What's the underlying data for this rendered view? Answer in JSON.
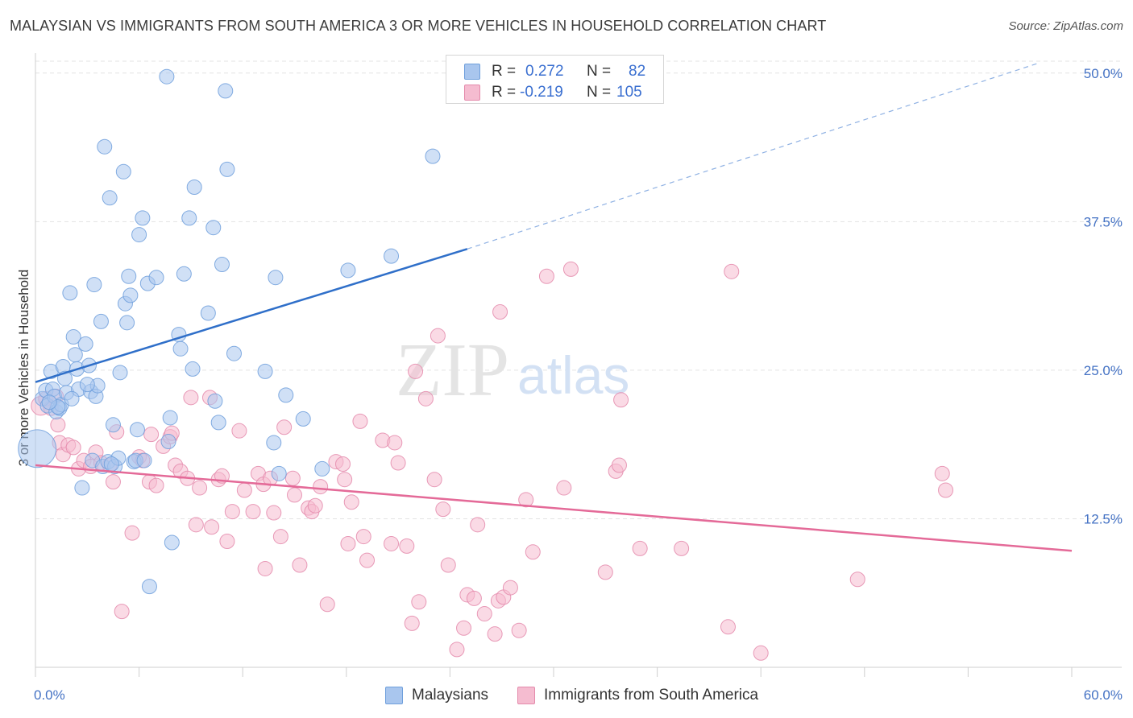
{
  "title": "MALAYSIAN VS IMMIGRANTS FROM SOUTH AMERICA 3 OR MORE VEHICLES IN HOUSEHOLD CORRELATION CHART",
  "source": "Source: ZipAtlas.com",
  "watermark": {
    "zip": "ZIP",
    "atlas": "atlas"
  },
  "legend_top": {
    "rows": [
      {
        "r_label": "R =",
        "r_value": "0.272",
        "n_label": "N =",
        "n_value": "82"
      },
      {
        "r_label": "R =",
        "r_value": "-0.219",
        "n_label": "N =",
        "n_value": "105"
      }
    ]
  },
  "legend_bottom": {
    "items": [
      {
        "label": "Malaysians"
      },
      {
        "label": "Immigrants from South America"
      }
    ]
  },
  "colors": {
    "blue_fill": "#a9c6ee",
    "blue_stroke": "#6f9fdc",
    "blue_line": "#2f6fc9",
    "pink_fill": "#f5bcd0",
    "pink_stroke": "#e48aab",
    "pink_line": "#e46a98",
    "axis_text": "#4472c4",
    "grid": "#e3e3e3"
  },
  "chart_data": {
    "type": "scatter",
    "title": "MALAYSIAN VS IMMIGRANTS FROM SOUTH AMERICA 3 OR MORE VEHICLES IN HOUSEHOLD CORRELATION CHART",
    "xlabel": "",
    "ylabel": "3 or more Vehicles in Household",
    "xlim": [
      0,
      60
    ],
    "ylim": [
      0,
      51
    ],
    "x_ticks": [
      "0.0%",
      "60.0%"
    ],
    "y_ticks": [
      {
        "value": 12.5,
        "label": "12.5%"
      },
      {
        "value": 25.0,
        "label": "25.0%"
      },
      {
        "value": 37.5,
        "label": "37.5%"
      },
      {
        "value": 50.0,
        "label": "50.0%"
      }
    ],
    "grid": true,
    "legend_position": "top-center",
    "series": [
      {
        "name": "Malaysians",
        "r": 0.272,
        "n": 82,
        "trend": {
          "x0": 0.0,
          "y0": 24.0,
          "x1": 25.0,
          "y1": 35.2,
          "dashed_to_x": 58.0,
          "dashed_to_y": 50.8
        },
        "points": [
          [
            0.1,
            18.4,
            2.6
          ],
          [
            0.4,
            22.6,
            1.0
          ],
          [
            0.6,
            23.3,
            1.0
          ],
          [
            0.7,
            22.0,
            1.0
          ],
          [
            0.9,
            24.9,
            1.0
          ],
          [
            1.0,
            23.4,
            1.0
          ],
          [
            1.1,
            22.8,
            1.0
          ],
          [
            1.2,
            21.5,
            1.0
          ],
          [
            1.4,
            21.8,
            1.0
          ],
          [
            1.5,
            22.1,
            1.0
          ],
          [
            1.6,
            25.3,
            1.0
          ],
          [
            1.7,
            24.3,
            1.0
          ],
          [
            1.8,
            23.1,
            1.0
          ],
          [
            2.0,
            31.5,
            1.0
          ],
          [
            2.2,
            27.8,
            1.0
          ],
          [
            2.3,
            26.3,
            1.0
          ],
          [
            2.4,
            25.1,
            1.0
          ],
          [
            2.5,
            23.4,
            1.0
          ],
          [
            2.7,
            15.1,
            1.0
          ],
          [
            2.9,
            27.2,
            1.0
          ],
          [
            3.1,
            25.4,
            1.0
          ],
          [
            3.2,
            23.2,
            1.0
          ],
          [
            3.3,
            17.4,
            1.0
          ],
          [
            3.4,
            32.2,
            1.0
          ],
          [
            3.5,
            22.8,
            1.0
          ],
          [
            3.6,
            23.7,
            1.0
          ],
          [
            3.8,
            29.1,
            1.0
          ],
          [
            3.9,
            16.9,
            1.0
          ],
          [
            4.0,
            43.8,
            1.0
          ],
          [
            4.2,
            17.3,
            1.0
          ],
          [
            4.3,
            39.5,
            1.0
          ],
          [
            4.5,
            20.4,
            1.0
          ],
          [
            4.6,
            16.9,
            1.0
          ],
          [
            4.8,
            17.6,
            1.0
          ],
          [
            4.9,
            24.8,
            1.0
          ],
          [
            5.1,
            41.7,
            1.0
          ],
          [
            5.2,
            30.6,
            1.0
          ],
          [
            5.3,
            29.0,
            1.0
          ],
          [
            5.4,
            32.9,
            1.0
          ],
          [
            5.5,
            31.3,
            1.0
          ],
          [
            5.7,
            17.3,
            1.0
          ],
          [
            5.8,
            17.4,
            1.0
          ],
          [
            5.9,
            20.0,
            1.0
          ],
          [
            6.0,
            36.4,
            1.0
          ],
          [
            6.2,
            37.8,
            1.0
          ],
          [
            6.3,
            17.4,
            1.0
          ],
          [
            6.5,
            32.3,
            1.0
          ],
          [
            6.6,
            6.8,
            1.0
          ],
          [
            7.0,
            32.8,
            1.0
          ],
          [
            7.6,
            49.7,
            1.0
          ],
          [
            7.7,
            19.0,
            1.0
          ],
          [
            7.8,
            21.0,
            1.0
          ],
          [
            7.9,
            10.5,
            1.0
          ],
          [
            8.3,
            28.0,
            1.0
          ],
          [
            8.4,
            26.8,
            1.0
          ],
          [
            8.6,
            33.1,
            1.0
          ],
          [
            8.9,
            37.8,
            1.0
          ],
          [
            9.1,
            25.1,
            1.0
          ],
          [
            9.2,
            40.4,
            1.0
          ],
          [
            10.0,
            29.8,
            1.0
          ],
          [
            10.3,
            37.0,
            1.0
          ],
          [
            10.4,
            22.4,
            1.0
          ],
          [
            10.6,
            20.6,
            1.0
          ],
          [
            10.8,
            33.9,
            1.0
          ],
          [
            11.0,
            48.5,
            1.0
          ],
          [
            11.1,
            41.9,
            1.0
          ],
          [
            11.5,
            26.4,
            1.0
          ],
          [
            13.3,
            24.9,
            1.0
          ],
          [
            13.8,
            18.9,
            1.0
          ],
          [
            13.9,
            32.8,
            1.0
          ],
          [
            14.1,
            16.3,
            1.0
          ],
          [
            14.5,
            22.9,
            1.0
          ],
          [
            15.5,
            20.9,
            1.0
          ],
          [
            16.6,
            16.7,
            1.0
          ],
          [
            18.1,
            33.4,
            1.0
          ],
          [
            20.6,
            34.6,
            1.0
          ],
          [
            23.0,
            43.0,
            1.0
          ],
          [
            3.0,
            23.8,
            1.0
          ],
          [
            1.3,
            21.9,
            1.0
          ],
          [
            0.8,
            22.3,
            1.0
          ],
          [
            2.1,
            22.6,
            1.0
          ],
          [
            4.4,
            17.1,
            1.0
          ]
        ]
      },
      {
        "name": "Immigrants from South America",
        "r": -0.219,
        "n": 105,
        "trend": {
          "x0": 0.0,
          "y0": 17.0,
          "x1": 60.0,
          "y1": 9.8
        },
        "points": [
          [
            0.3,
            22.0,
            1.3
          ],
          [
            0.6,
            22.6,
            1.0
          ],
          [
            0.9,
            21.8,
            1.0
          ],
          [
            1.2,
            22.8,
            1.0
          ],
          [
            1.3,
            20.4,
            1.0
          ],
          [
            1.4,
            18.9,
            1.0
          ],
          [
            1.6,
            17.9,
            1.0
          ],
          [
            1.9,
            18.7,
            1.0
          ],
          [
            2.2,
            18.5,
            1.0
          ],
          [
            2.5,
            16.7,
            1.0
          ],
          [
            2.8,
            17.4,
            1.0
          ],
          [
            3.2,
            16.9,
            1.0
          ],
          [
            3.5,
            18.1,
            1.0
          ],
          [
            3.8,
            17.2,
            1.0
          ],
          [
            4.3,
            17.0,
            1.0
          ],
          [
            4.5,
            15.6,
            1.0
          ],
          [
            4.7,
            19.8,
            1.0
          ],
          [
            5.0,
            4.7,
            1.0
          ],
          [
            5.6,
            11.3,
            1.0
          ],
          [
            6.0,
            17.7,
            1.0
          ],
          [
            6.2,
            17.4,
            1.0
          ],
          [
            6.6,
            15.6,
            1.0
          ],
          [
            6.7,
            19.6,
            1.0
          ],
          [
            7.0,
            15.3,
            1.0
          ],
          [
            7.4,
            18.6,
            1.0
          ],
          [
            7.8,
            19.4,
            1.0
          ],
          [
            7.9,
            19.7,
            1.0
          ],
          [
            8.1,
            17.0,
            1.0
          ],
          [
            8.4,
            16.5,
            1.0
          ],
          [
            8.8,
            15.9,
            1.0
          ],
          [
            9.0,
            22.7,
            1.0
          ],
          [
            9.3,
            12.0,
            1.0
          ],
          [
            9.5,
            15.1,
            1.0
          ],
          [
            10.1,
            22.7,
            1.0
          ],
          [
            10.2,
            11.8,
            1.0
          ],
          [
            10.6,
            15.8,
            1.0
          ],
          [
            10.8,
            16.1,
            1.0
          ],
          [
            11.1,
            10.6,
            1.0
          ],
          [
            11.4,
            13.1,
            1.0
          ],
          [
            11.8,
            19.9,
            1.0
          ],
          [
            12.1,
            14.9,
            1.0
          ],
          [
            12.6,
            13.1,
            1.0
          ],
          [
            12.9,
            16.3,
            1.0
          ],
          [
            13.2,
            15.4,
            1.0
          ],
          [
            13.3,
            8.3,
            1.0
          ],
          [
            13.6,
            15.9,
            1.0
          ],
          [
            13.8,
            13.0,
            1.0
          ],
          [
            14.2,
            11.0,
            1.0
          ],
          [
            14.4,
            20.2,
            1.0
          ],
          [
            14.9,
            15.9,
            1.0
          ],
          [
            15.0,
            14.5,
            1.0
          ],
          [
            15.3,
            8.6,
            1.0
          ],
          [
            15.8,
            13.4,
            1.0
          ],
          [
            16.0,
            13.1,
            1.0
          ],
          [
            16.2,
            13.6,
            1.0
          ],
          [
            16.5,
            15.2,
            1.0
          ],
          [
            16.9,
            5.3,
            1.0
          ],
          [
            17.4,
            17.3,
            1.0
          ],
          [
            17.8,
            17.1,
            1.0
          ],
          [
            17.9,
            15.8,
            1.0
          ],
          [
            18.1,
            10.4,
            1.0
          ],
          [
            18.3,
            13.9,
            1.0
          ],
          [
            18.8,
            20.7,
            1.0
          ],
          [
            19.0,
            11.0,
            1.0
          ],
          [
            19.2,
            9.0,
            1.0
          ],
          [
            20.1,
            19.1,
            1.0
          ],
          [
            20.6,
            10.4,
            1.0
          ],
          [
            20.8,
            18.9,
            1.0
          ],
          [
            21.0,
            17.2,
            1.0
          ],
          [
            21.5,
            10.2,
            1.0
          ],
          [
            21.8,
            3.7,
            1.0
          ],
          [
            22.0,
            24.9,
            1.0
          ],
          [
            22.2,
            5.5,
            1.0
          ],
          [
            22.6,
            22.6,
            1.0
          ],
          [
            23.1,
            15.8,
            1.0
          ],
          [
            23.3,
            27.9,
            1.0
          ],
          [
            23.6,
            13.3,
            1.0
          ],
          [
            23.9,
            8.6,
            1.0
          ],
          [
            24.4,
            1.5,
            1.0
          ],
          [
            24.8,
            3.3,
            1.0
          ],
          [
            25.0,
            6.1,
            1.0
          ],
          [
            25.4,
            5.8,
            1.0
          ],
          [
            25.6,
            12.0,
            1.0
          ],
          [
            26.0,
            4.5,
            1.0
          ],
          [
            26.6,
            2.8,
            1.0
          ],
          [
            26.8,
            5.6,
            1.0
          ],
          [
            27.1,
            5.9,
            1.0
          ],
          [
            26.9,
            29.9,
            1.0
          ],
          [
            27.5,
            6.7,
            1.0
          ],
          [
            28.0,
            3.1,
            1.0
          ],
          [
            28.4,
            14.1,
            1.0
          ],
          [
            28.8,
            9.7,
            1.0
          ],
          [
            29.6,
            32.9,
            1.0
          ],
          [
            30.6,
            15.1,
            1.0
          ],
          [
            31.0,
            33.5,
            1.0
          ],
          [
            33.0,
            8.0,
            1.0
          ],
          [
            33.6,
            16.5,
            1.0
          ],
          [
            33.8,
            17.0,
            1.0
          ],
          [
            35.0,
            10.0,
            1.0
          ],
          [
            37.4,
            10.0,
            1.0
          ],
          [
            40.1,
            3.4,
            1.0
          ],
          [
            40.3,
            33.3,
            1.0
          ],
          [
            42.0,
            1.2,
            1.0
          ],
          [
            47.6,
            7.4,
            1.0
          ],
          [
            52.5,
            16.3,
            1.0
          ],
          [
            52.7,
            14.9,
            1.0
          ],
          [
            33.9,
            22.5,
            1.0
          ]
        ]
      }
    ]
  }
}
